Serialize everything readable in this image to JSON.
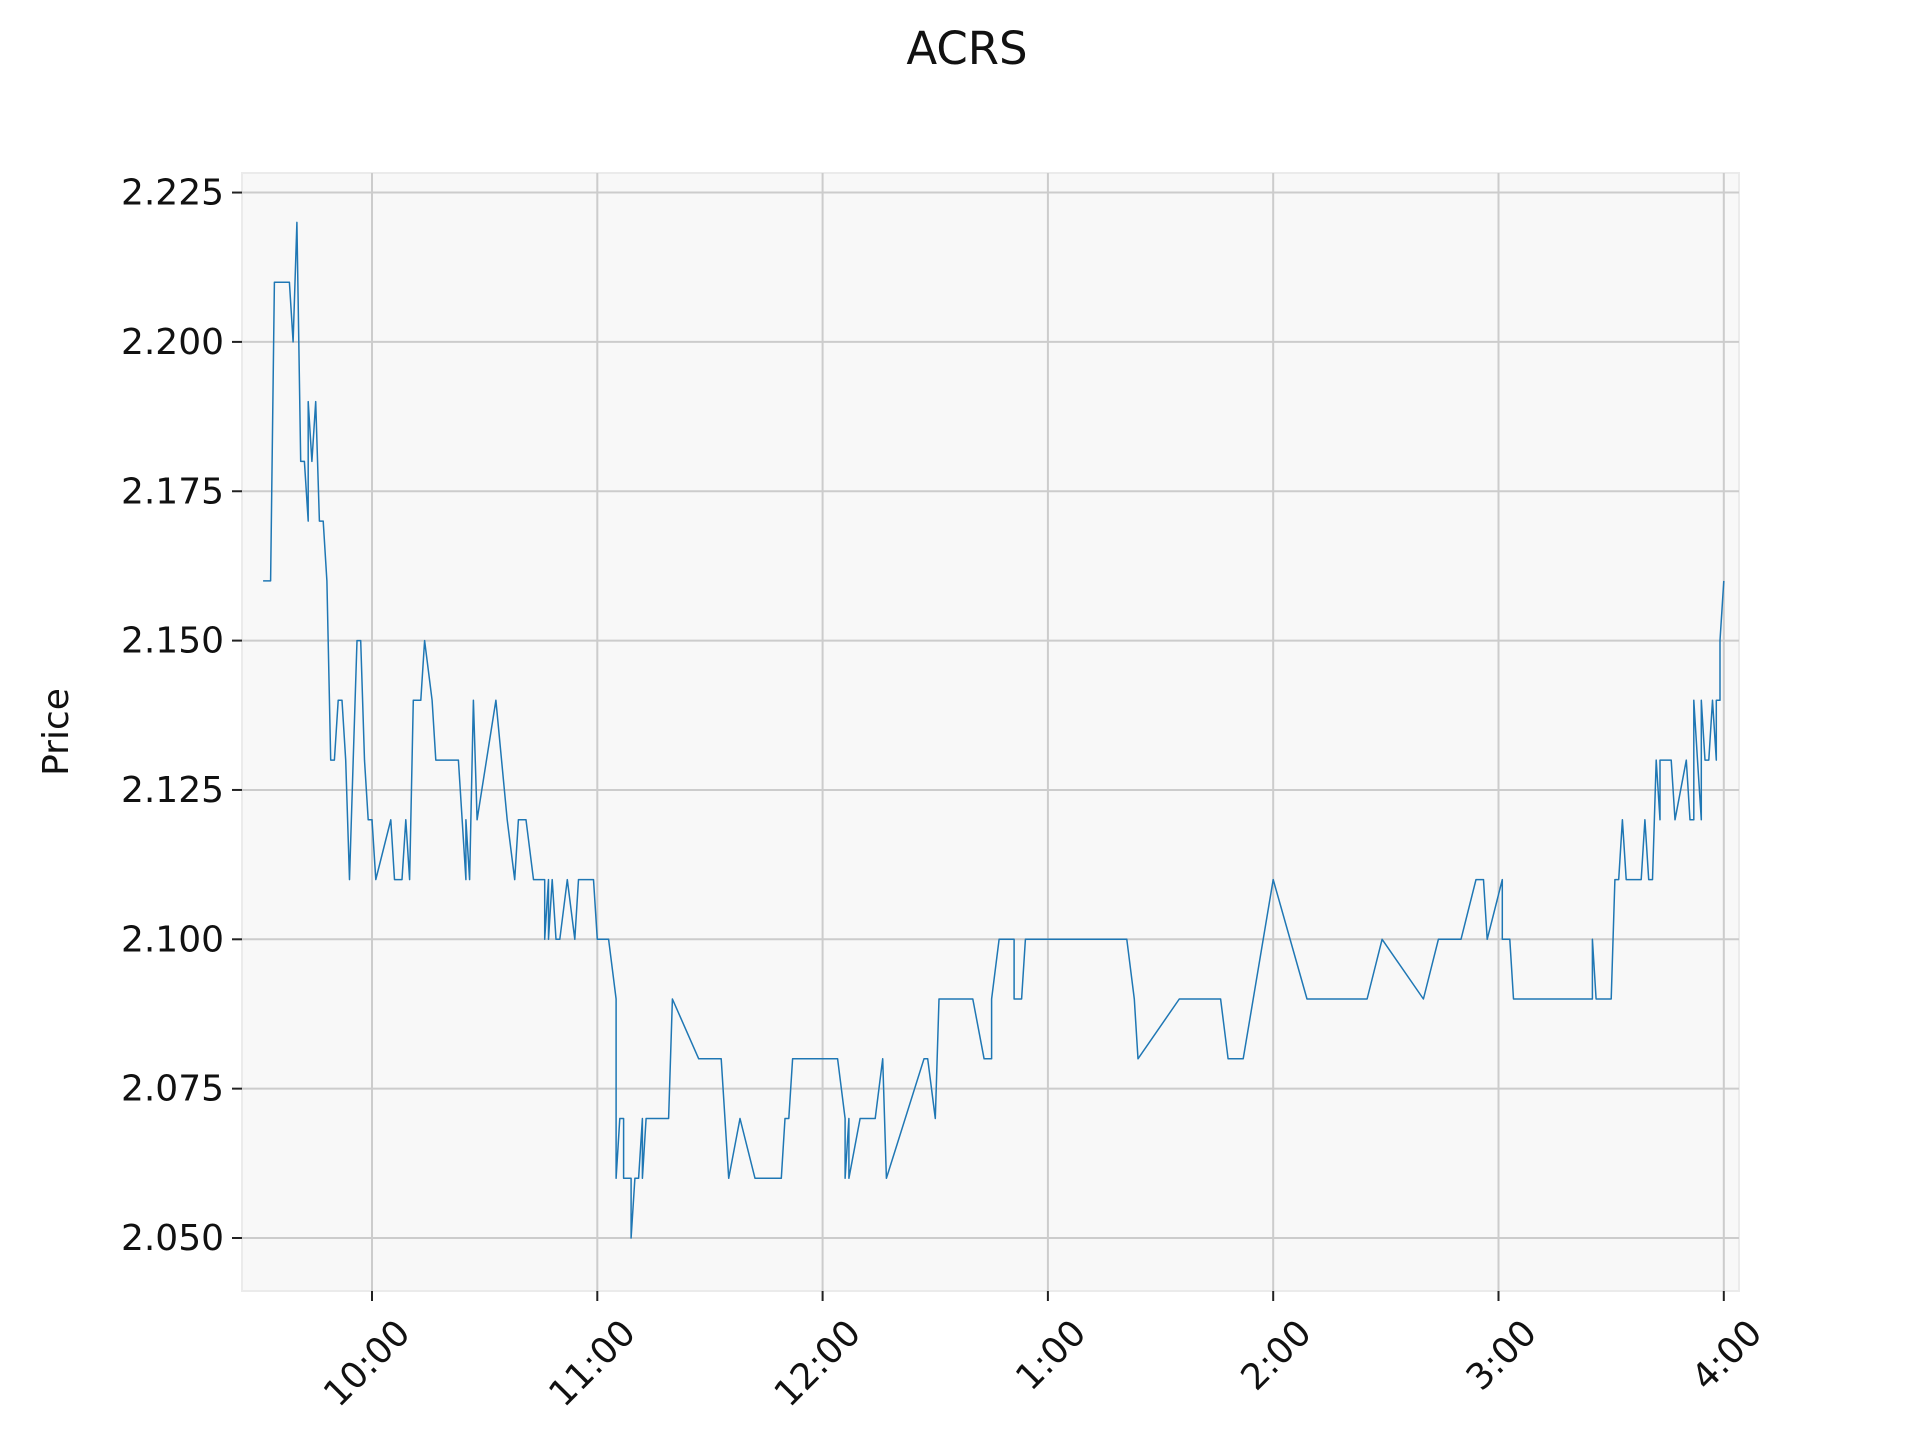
{
  "chart_data": {
    "type": "line",
    "title": "ACRS",
    "xlabel": "",
    "ylabel": "Price",
    "x_ticks": [
      "10:00",
      "11:00",
      "12:00",
      "1:00",
      "2:00",
      "3:00",
      "4:00"
    ],
    "y_ticks": [
      "2.050",
      "2.075",
      "2.100",
      "2.125",
      "2.150",
      "2.175",
      "2.200",
      "2.225"
    ],
    "ylim": [
      2.042,
      2.229
    ],
    "grid": true,
    "colors": {
      "line": "#1f77b4",
      "plot_background": "#f8f8f8",
      "grid": "#cccccc"
    },
    "series": [
      {
        "points": [
          [
            "9:31",
            2.16
          ],
          [
            "9:32",
            2.16
          ],
          [
            "9:33",
            2.16
          ],
          [
            "9:34",
            2.21
          ],
          [
            "9:35",
            2.21
          ],
          [
            "9:36",
            2.21
          ],
          [
            "9:37",
            2.21
          ],
          [
            "9:38",
            2.21
          ],
          [
            "9:39",
            2.2
          ],
          [
            "9:40",
            2.22
          ],
          [
            "9:41",
            2.18
          ],
          [
            "9:42",
            2.18
          ],
          [
            "9:43",
            2.17
          ],
          [
            "9:43",
            2.19
          ],
          [
            "9:44",
            2.18
          ],
          [
            "9:45",
            2.19
          ],
          [
            "9:46",
            2.17
          ],
          [
            "9:47",
            2.17
          ],
          [
            "9:48",
            2.16
          ],
          [
            "9:49",
            2.13
          ],
          [
            "9:50",
            2.13
          ],
          [
            "9:51",
            2.14
          ],
          [
            "9:52",
            2.14
          ],
          [
            "9:53",
            2.13
          ],
          [
            "9:54",
            2.11
          ],
          [
            "9:55",
            2.13
          ],
          [
            "9:56",
            2.15
          ],
          [
            "9:57",
            2.15
          ],
          [
            "9:58",
            2.13
          ],
          [
            "9:59",
            2.12
          ],
          [
            "10:00",
            2.12
          ],
          [
            "10:01",
            2.11
          ],
          [
            "10:05",
            2.12
          ],
          [
            "10:06",
            2.11
          ],
          [
            "10:08",
            2.11
          ],
          [
            "10:09",
            2.12
          ],
          [
            "10:10",
            2.11
          ],
          [
            "10:11",
            2.14
          ],
          [
            "10:13",
            2.14
          ],
          [
            "10:14",
            2.15
          ],
          [
            "10:16",
            2.14
          ],
          [
            "10:17",
            2.13
          ],
          [
            "10:23",
            2.13
          ],
          [
            "10:25",
            2.11
          ],
          [
            "10:25",
            2.12
          ],
          [
            "10:26",
            2.11
          ],
          [
            "10:27",
            2.14
          ],
          [
            "10:28",
            2.12
          ],
          [
            "10:33",
            2.14
          ],
          [
            "10:36",
            2.12
          ],
          [
            "10:38",
            2.11
          ],
          [
            "10:39",
            2.12
          ],
          [
            "10:41",
            2.12
          ],
          [
            "10:43",
            2.11
          ],
          [
            "10:46",
            2.11
          ],
          [
            "10:46",
            2.1
          ],
          [
            "10:47",
            2.11
          ],
          [
            "10:47",
            2.1
          ],
          [
            "10:48",
            2.11
          ],
          [
            "10:49",
            2.1
          ],
          [
            "10:50",
            2.1
          ],
          [
            "10:52",
            2.11
          ],
          [
            "10:54",
            2.1
          ],
          [
            "10:55",
            2.11
          ],
          [
            "10:59",
            2.11
          ],
          [
            "11:00",
            2.1
          ],
          [
            "11:03",
            2.1
          ],
          [
            "11:05",
            2.09
          ],
          [
            "11:05",
            2.06
          ],
          [
            "11:06",
            2.07
          ],
          [
            "11:07",
            2.07
          ],
          [
            "11:07",
            2.06
          ],
          [
            "11:09",
            2.06
          ],
          [
            "11:09",
            2.05
          ],
          [
            "11:10",
            2.06
          ],
          [
            "11:11",
            2.06
          ],
          [
            "11:12",
            2.07
          ],
          [
            "11:12",
            2.06
          ],
          [
            "11:13",
            2.07
          ],
          [
            "11:19",
            2.07
          ],
          [
            "11:20",
            2.09
          ],
          [
            "11:27",
            2.08
          ],
          [
            "11:33",
            2.08
          ],
          [
            "11:35",
            2.06
          ],
          [
            "11:38",
            2.07
          ],
          [
            "11:42",
            2.06
          ],
          [
            "11:49",
            2.06
          ],
          [
            "11:50",
            2.07
          ],
          [
            "11:51",
            2.07
          ],
          [
            "11:52",
            2.08
          ],
          [
            "12:04",
            2.08
          ],
          [
            "12:06",
            2.07
          ],
          [
            "12:06",
            2.06
          ],
          [
            "12:07",
            2.07
          ],
          [
            "12:07",
            2.06
          ],
          [
            "12:10",
            2.07
          ],
          [
            "12:14",
            2.07
          ],
          [
            "12:16",
            2.08
          ],
          [
            "12:17",
            2.06
          ],
          [
            "12:27",
            2.08
          ],
          [
            "12:28",
            2.08
          ],
          [
            "12:30",
            2.07
          ],
          [
            "12:31",
            2.09
          ],
          [
            "12:40",
            2.09
          ],
          [
            "12:43",
            2.08
          ],
          [
            "12:45",
            2.08
          ],
          [
            "12:45",
            2.09
          ],
          [
            "12:47",
            2.1
          ],
          [
            "12:51",
            2.1
          ],
          [
            "12:51",
            2.09
          ],
          [
            "12:53",
            2.09
          ],
          [
            "12:54",
            2.1
          ],
          [
            "13:21",
            2.1
          ],
          [
            "13:23",
            2.09
          ],
          [
            "13:24",
            2.08
          ],
          [
            "13:35",
            2.09
          ],
          [
            "13:46",
            2.09
          ],
          [
            "13:48",
            2.08
          ],
          [
            "13:52",
            2.08
          ],
          [
            "14:00",
            2.11
          ],
          [
            "14:09",
            2.09
          ],
          [
            "14:25",
            2.09
          ],
          [
            "14:29",
            2.1
          ],
          [
            "14:40",
            2.09
          ],
          [
            "14:44",
            2.1
          ],
          [
            "14:50",
            2.1
          ],
          [
            "14:54",
            2.11
          ],
          [
            "14:56",
            2.11
          ],
          [
            "14:57",
            2.1
          ],
          [
            "15:01",
            2.11
          ],
          [
            "15:01",
            2.1
          ],
          [
            "15:03",
            2.1
          ],
          [
            "15:04",
            2.09
          ],
          [
            "15:25",
            2.09
          ],
          [
            "15:25",
            2.1
          ],
          [
            "15:26",
            2.09
          ],
          [
            "15:30",
            2.09
          ],
          [
            "15:31",
            2.11
          ],
          [
            "15:32",
            2.11
          ],
          [
            "15:33",
            2.12
          ],
          [
            "15:34",
            2.11
          ],
          [
            "15:38",
            2.11
          ],
          [
            "15:39",
            2.12
          ],
          [
            "15:40",
            2.11
          ],
          [
            "15:41",
            2.11
          ],
          [
            "15:42",
            2.13
          ],
          [
            "15:43",
            2.12
          ],
          [
            "15:43",
            2.13
          ],
          [
            "15:46",
            2.13
          ],
          [
            "15:47",
            2.12
          ],
          [
            "15:50",
            2.13
          ],
          [
            "15:51",
            2.12
          ],
          [
            "15:52",
            2.12
          ],
          [
            "15:52",
            2.14
          ],
          [
            "15:53",
            2.13
          ],
          [
            "15:54",
            2.12
          ],
          [
            "15:54",
            2.14
          ],
          [
            "15:55",
            2.13
          ],
          [
            "15:56",
            2.13
          ],
          [
            "15:57",
            2.14
          ],
          [
            "15:58",
            2.13
          ],
          [
            "15:58",
            2.14
          ],
          [
            "15:59",
            2.14
          ],
          [
            "15:59",
            2.15
          ],
          [
            "16:00",
            2.16
          ]
        ]
      }
    ]
  }
}
